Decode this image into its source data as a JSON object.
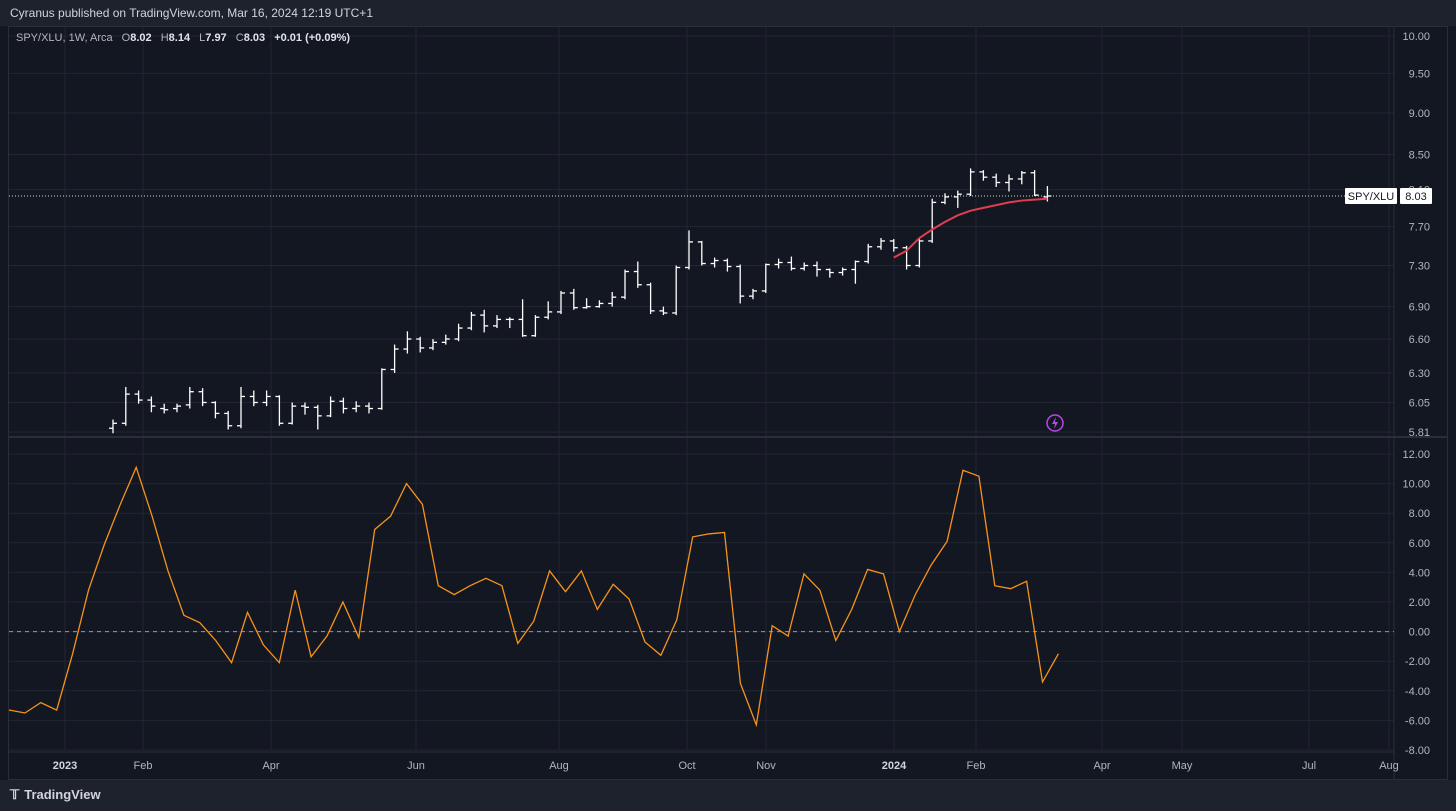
{
  "header": {
    "published": "Cyranus published on TradingView.com, Mar 16, 2024 12:19 UTC+1"
  },
  "footer": {
    "logo_text": "TradingView"
  },
  "legend": {
    "symbol": "SPY/XLU, 1W, Arca",
    "o_label": "O",
    "open": "8.02",
    "h_label": "H",
    "high": "8.14",
    "l_label": "L",
    "low": "7.97",
    "c_label": "C",
    "close": "8.03",
    "change": "+0.01 (+0.09%)"
  },
  "price_tag": {
    "symbol": "SPY/XLU",
    "value": "8.03"
  },
  "colors": {
    "background": "#131722",
    "bar": "#ffffff",
    "ma_line": "#e03e4e",
    "oscillator": "#f7931a",
    "grid": "#232632",
    "axis_text": "#b2b5be"
  },
  "icons": {
    "alert": "lightning-alert-icon"
  },
  "chart_data": [
    {
      "type": "bar",
      "subtype": "ohlc",
      "title": "SPY/XLU, 1W, Arca",
      "x_axis_labels": [
        "2023",
        "Feb",
        "Apr",
        "Jun",
        "Aug",
        "Oct",
        "Nov",
        "2024",
        "Feb",
        "Apr",
        "May",
        "Jul",
        "Aug"
      ],
      "y_ticks": [
        "10.00",
        "9.50",
        "9.00",
        "8.50",
        "8.10",
        "7.70",
        "7.30",
        "6.90",
        "6.60",
        "6.30",
        "6.05",
        "5.81"
      ],
      "y_scale": "log",
      "ylim": [
        5.81,
        10.0
      ],
      "current_value": 8.03,
      "ohlc": [
        [
          5.84,
          5.91,
          5.8,
          5.88
        ],
        [
          5.88,
          6.18,
          5.86,
          6.12
        ],
        [
          6.12,
          6.15,
          6.04,
          6.07
        ],
        [
          6.07,
          6.1,
          5.97,
          6.02
        ],
        [
          6.0,
          6.04,
          5.96,
          5.99
        ],
        [
          6.0,
          6.04,
          5.97,
          6.02
        ],
        [
          6.03,
          6.18,
          6.0,
          6.14
        ],
        [
          6.14,
          6.17,
          6.02,
          6.05
        ],
        [
          6.05,
          6.06,
          5.92,
          5.96
        ],
        [
          5.96,
          5.98,
          5.83,
          5.86
        ],
        [
          5.86,
          6.18,
          5.84,
          6.1
        ],
        [
          6.1,
          6.15,
          6.02,
          6.05
        ],
        [
          6.05,
          6.15,
          6.02,
          6.1
        ],
        [
          6.1,
          6.11,
          5.86,
          5.88
        ],
        [
          5.88,
          6.05,
          5.87,
          6.02
        ],
        [
          6.02,
          6.05,
          5.95,
          6.01
        ],
        [
          6.01,
          6.03,
          5.83,
          5.94
        ],
        [
          5.94,
          6.1,
          5.93,
          6.06
        ],
        [
          6.06,
          6.09,
          5.96,
          6.0
        ],
        [
          6.0,
          6.06,
          5.97,
          6.02
        ],
        [
          6.02,
          6.05,
          5.96,
          6.0
        ],
        [
          6.0,
          6.34,
          5.99,
          6.33
        ],
        [
          6.33,
          6.55,
          6.3,
          6.51
        ],
        [
          6.51,
          6.67,
          6.47,
          6.6
        ],
        [
          6.6,
          6.62,
          6.48,
          6.52
        ],
        [
          6.52,
          6.6,
          6.5,
          6.57
        ],
        [
          6.57,
          6.64,
          6.55,
          6.6
        ],
        [
          6.6,
          6.74,
          6.58,
          6.7
        ],
        [
          6.7,
          6.85,
          6.68,
          6.82
        ],
        [
          6.82,
          6.87,
          6.66,
          6.72
        ],
        [
          6.72,
          6.82,
          6.7,
          6.78
        ],
        [
          6.78,
          6.8,
          6.7,
          6.78
        ],
        [
          6.78,
          6.97,
          6.62,
          6.63
        ],
        [
          6.63,
          6.82,
          6.62,
          6.8
        ],
        [
          6.8,
          6.95,
          6.78,
          6.85
        ],
        [
          6.85,
          7.05,
          6.83,
          7.03
        ],
        [
          7.03,
          7.07,
          6.87,
          6.89
        ],
        [
          6.89,
          6.98,
          6.88,
          6.9
        ],
        [
          6.9,
          6.96,
          6.89,
          6.93
        ],
        [
          6.93,
          7.04,
          6.9,
          6.99
        ],
        [
          6.99,
          7.26,
          6.97,
          7.24
        ],
        [
          7.24,
          7.34,
          7.08,
          7.11
        ],
        [
          7.11,
          7.13,
          6.83,
          6.86
        ],
        [
          6.86,
          6.9,
          6.82,
          6.84
        ],
        [
          6.84,
          7.3,
          6.82,
          7.28
        ],
        [
          7.28,
          7.66,
          7.26,
          7.54
        ],
        [
          7.54,
          7.55,
          7.3,
          7.32
        ],
        [
          7.32,
          7.38,
          7.28,
          7.35
        ],
        [
          7.35,
          7.37,
          7.24,
          7.29
        ],
        [
          7.29,
          7.31,
          6.93,
          7.0
        ],
        [
          7.0,
          7.07,
          6.97,
          7.05
        ],
        [
          7.05,
          7.32,
          7.03,
          7.31
        ],
        [
          7.31,
          7.37,
          7.27,
          7.33
        ],
        [
          7.33,
          7.39,
          7.25,
          7.27
        ],
        [
          7.27,
          7.33,
          7.25,
          7.3
        ],
        [
          7.3,
          7.34,
          7.19,
          7.26
        ],
        [
          7.26,
          7.27,
          7.18,
          7.23
        ],
        [
          7.23,
          7.28,
          7.2,
          7.26
        ],
        [
          7.26,
          7.35,
          7.12,
          7.34
        ],
        [
          7.34,
          7.52,
          7.32,
          7.49
        ],
        [
          7.49,
          7.58,
          7.46,
          7.55
        ],
        [
          7.55,
          7.57,
          7.44,
          7.48
        ],
        [
          7.48,
          7.5,
          7.26,
          7.3
        ],
        [
          7.3,
          7.57,
          7.28,
          7.55
        ],
        [
          7.55,
          8.0,
          7.53,
          7.96
        ],
        [
          7.96,
          8.06,
          7.94,
          8.02
        ],
        [
          8.02,
          8.09,
          7.9,
          8.05
        ],
        [
          8.05,
          8.34,
          8.03,
          8.3
        ],
        [
          8.3,
          8.32,
          8.2,
          8.24
        ],
        [
          8.24,
          8.28,
          8.13,
          8.18
        ],
        [
          8.18,
          8.27,
          8.08,
          8.22
        ],
        [
          8.22,
          8.31,
          8.16,
          8.29
        ],
        [
          8.29,
          8.32,
          8.03,
          8.04
        ],
        [
          8.02,
          8.14,
          7.97,
          8.03
        ]
      ],
      "moving_average": [
        7.38,
        7.45,
        7.58,
        7.67,
        7.75,
        7.82,
        7.87,
        7.9,
        7.93,
        7.96,
        7.98,
        7.99,
        8.0
      ]
    },
    {
      "type": "line",
      "y_ticks": [
        "12.00",
        "10.00",
        "8.00",
        "6.00",
        "4.00",
        "2.00",
        "0.00",
        "-2.00",
        "-4.00",
        "-6.00",
        "-8.00"
      ],
      "ylim": [
        -8,
        12
      ],
      "zero_line": 0,
      "values": [
        -5.3,
        -5.5,
        -4.8,
        -5.3,
        -1.5,
        2.8,
        5.9,
        8.6,
        11.1,
        7.8,
        4.1,
        1.1,
        0.6,
        -0.6,
        -2.1,
        1.3,
        -0.9,
        -2.1,
        2.8,
        -1.7,
        -0.3,
        2.0,
        -0.4,
        6.9,
        7.8,
        10.0,
        8.6,
        3.1,
        2.5,
        3.1,
        3.6,
        3.1,
        -0.8,
        0.7,
        4.1,
        2.7,
        4.1,
        1.5,
        3.2,
        2.2,
        -0.7,
        -1.6,
        0.8,
        6.4,
        6.6,
        6.7,
        -3.5,
        -6.3,
        0.4,
        -0.3,
        3.9,
        2.8,
        -0.6,
        1.5,
        4.2,
        3.9,
        0.0,
        2.5,
        4.5,
        6.1,
        10.9,
        10.5,
        3.1,
        2.9,
        3.4,
        -3.4,
        -1.5
      ]
    }
  ]
}
